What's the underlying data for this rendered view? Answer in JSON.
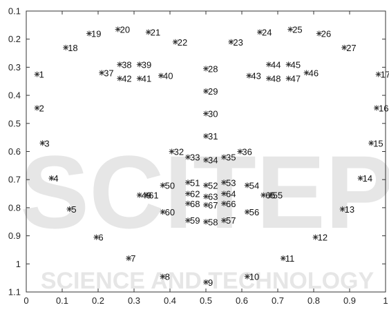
{
  "watermark": {
    "big_text": "SCITEP",
    "sub_text": "SCIENCE AND TECHNOLOGY"
  },
  "chart_data": {
    "type": "scatter",
    "title": "",
    "xlabel": "",
    "ylabel": "",
    "xlim": [
      0,
      1
    ],
    "ylim": [
      1.1,
      0.1
    ],
    "y_reversed": true,
    "grid": false,
    "legend": "none",
    "marker": "asterisk",
    "marker_color": "#333333",
    "x_ticks": [
      "0",
      "0.1",
      "0.2",
      "0.3",
      "0.4",
      "0.5",
      "0.6",
      "0.7",
      "0.8",
      "0.9",
      "1"
    ],
    "y_ticks": [
      "0.1",
      "0.2",
      "0.3",
      "0.4",
      "0.5",
      "0.6",
      "0.7",
      "0.8",
      "0.9",
      "1",
      "1.1"
    ],
    "points": [
      {
        "label": "1",
        "x": 0.03,
        "y": 0.325
      },
      {
        "label": "2",
        "x": 0.03,
        "y": 0.445
      },
      {
        "label": "3",
        "x": 0.045,
        "y": 0.57
      },
      {
        "label": "4",
        "x": 0.07,
        "y": 0.695
      },
      {
        "label": "5",
        "x": 0.12,
        "y": 0.805
      },
      {
        "label": "6",
        "x": 0.195,
        "y": 0.905
      },
      {
        "label": "7",
        "x": 0.285,
        "y": 0.98
      },
      {
        "label": "8",
        "x": 0.38,
        "y": 1.045
      },
      {
        "label": "9",
        "x": 0.5,
        "y": 1.065
      },
      {
        "label": "10",
        "x": 0.615,
        "y": 1.045
      },
      {
        "label": "11",
        "x": 0.715,
        "y": 0.98
      },
      {
        "label": "12",
        "x": 0.805,
        "y": 0.905
      },
      {
        "label": "13",
        "x": 0.88,
        "y": 0.805
      },
      {
        "label": "14",
        "x": 0.93,
        "y": 0.695
      },
      {
        "label": "15",
        "x": 0.96,
        "y": 0.57
      },
      {
        "label": "16",
        "x": 0.975,
        "y": 0.445
      },
      {
        "label": "17",
        "x": 0.98,
        "y": 0.325
      },
      {
        "label": "18",
        "x": 0.11,
        "y": 0.23
      },
      {
        "label": "19",
        "x": 0.175,
        "y": 0.18
      },
      {
        "label": "20",
        "x": 0.255,
        "y": 0.165
      },
      {
        "label": "21",
        "x": 0.34,
        "y": 0.175
      },
      {
        "label": "22",
        "x": 0.415,
        "y": 0.21
      },
      {
        "label": "23",
        "x": 0.57,
        "y": 0.21
      },
      {
        "label": "24",
        "x": 0.65,
        "y": 0.175
      },
      {
        "label": "25",
        "x": 0.735,
        "y": 0.165
      },
      {
        "label": "26",
        "x": 0.815,
        "y": 0.18
      },
      {
        "label": "27",
        "x": 0.885,
        "y": 0.23
      },
      {
        "label": "28",
        "x": 0.5,
        "y": 0.305
      },
      {
        "label": "29",
        "x": 0.5,
        "y": 0.385
      },
      {
        "label": "30",
        "x": 0.5,
        "y": 0.465
      },
      {
        "label": "31",
        "x": 0.5,
        "y": 0.545
      },
      {
        "label": "32",
        "x": 0.405,
        "y": 0.6
      },
      {
        "label": "33",
        "x": 0.45,
        "y": 0.62
      },
      {
        "label": "34",
        "x": 0.5,
        "y": 0.63
      },
      {
        "label": "35",
        "x": 0.55,
        "y": 0.62
      },
      {
        "label": "36",
        "x": 0.595,
        "y": 0.6
      },
      {
        "label": "37",
        "x": 0.21,
        "y": 0.32
      },
      {
        "label": "38",
        "x": 0.26,
        "y": 0.29
      },
      {
        "label": "39",
        "x": 0.315,
        "y": 0.29
      },
      {
        "label": "40",
        "x": 0.375,
        "y": 0.33
      },
      {
        "label": "41",
        "x": 0.315,
        "y": 0.34
      },
      {
        "label": "42",
        "x": 0.26,
        "y": 0.34
      },
      {
        "label": "43",
        "x": 0.62,
        "y": 0.33
      },
      {
        "label": "44",
        "x": 0.675,
        "y": 0.29
      },
      {
        "label": "45",
        "x": 0.73,
        "y": 0.29
      },
      {
        "label": "46",
        "x": 0.78,
        "y": 0.32
      },
      {
        "label": "47",
        "x": 0.73,
        "y": 0.34
      },
      {
        "label": "48",
        "x": 0.675,
        "y": 0.34
      },
      {
        "label": "49",
        "x": 0.315,
        "y": 0.755
      },
      {
        "label": "50",
        "x": 0.38,
        "y": 0.72
      },
      {
        "label": "51",
        "x": 0.45,
        "y": 0.71
      },
      {
        "label": "52",
        "x": 0.5,
        "y": 0.72
      },
      {
        "label": "53",
        "x": 0.55,
        "y": 0.71
      },
      {
        "label": "54",
        "x": 0.615,
        "y": 0.72
      },
      {
        "label": "55",
        "x": 0.68,
        "y": 0.755
      },
      {
        "label": "56",
        "x": 0.615,
        "y": 0.815
      },
      {
        "label": "57",
        "x": 0.55,
        "y": 0.845
      },
      {
        "label": "58",
        "x": 0.5,
        "y": 0.85
      },
      {
        "label": "59",
        "x": 0.45,
        "y": 0.845
      },
      {
        "label": "60",
        "x": 0.38,
        "y": 0.815
      },
      {
        "label": "61",
        "x": 0.335,
        "y": 0.755
      },
      {
        "label": "62",
        "x": 0.45,
        "y": 0.75
      },
      {
        "label": "63",
        "x": 0.5,
        "y": 0.76
      },
      {
        "label": "64",
        "x": 0.55,
        "y": 0.75
      },
      {
        "label": "65",
        "x": 0.66,
        "y": 0.755
      },
      {
        "label": "66",
        "x": 0.55,
        "y": 0.785
      },
      {
        "label": "67",
        "x": 0.5,
        "y": 0.79
      },
      {
        "label": "68",
        "x": 0.45,
        "y": 0.785
      }
    ]
  }
}
